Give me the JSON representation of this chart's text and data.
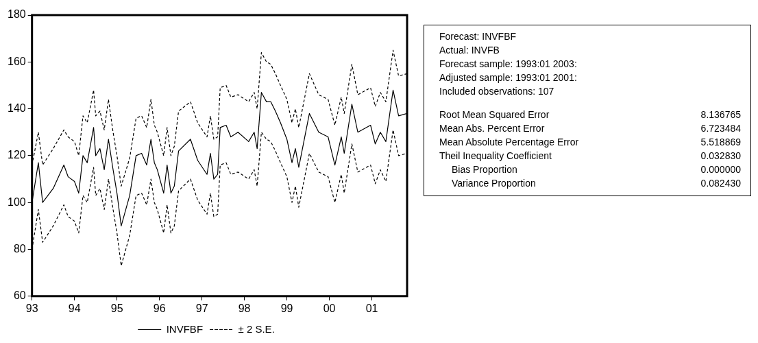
{
  "chart_data": [
    {
      "type": "line",
      "x": [
        1993.0,
        1993.15,
        1993.25,
        1993.5,
        1993.75,
        1993.85,
        1994.0,
        1994.1,
        1994.2,
        1994.3,
        1994.45,
        1994.5,
        1994.6,
        1994.7,
        1994.8,
        1994.9,
        1995.0,
        1995.1,
        1995.3,
        1995.45,
        1995.58,
        1995.7,
        1995.8,
        1995.88,
        1995.95,
        1996.1,
        1996.18,
        1996.27,
        1996.35,
        1996.45,
        1996.73,
        1996.9,
        1997.12,
        1997.2,
        1997.28,
        1997.37,
        1997.43,
        1997.57,
        1997.68,
        1997.85,
        1998.1,
        1998.23,
        1998.3,
        1998.4,
        1998.52,
        1998.62,
        1998.73,
        1998.85,
        1999.0,
        1999.12,
        1999.2,
        1999.28,
        1999.53,
        1999.75,
        1999.97,
        2000.13,
        2000.28,
        2000.35,
        2000.53,
        2000.67,
        2000.97,
        2001.08,
        2001.2,
        2001.33,
        2001.5,
        2001.63,
        2001.83
      ],
      "series": [
        {
          "name": "INVFBF",
          "color": "#000000",
          "line_style": "solid",
          "values": [
            100,
            117,
            100,
            106,
            116,
            111,
            109,
            104,
            120,
            117,
            132,
            120,
            123,
            114,
            127,
            115,
            104,
            90,
            103,
            120,
            121,
            116,
            127,
            117,
            114,
            104,
            116,
            104,
            107,
            122,
            127,
            118,
            112,
            121,
            110,
            112,
            132,
            133,
            128,
            130,
            126,
            130,
            123,
            147,
            143,
            143,
            139,
            134,
            127,
            117,
            123,
            115,
            138,
            130,
            128,
            116,
            128,
            121,
            142,
            130,
            133,
            125,
            130,
            126,
            148,
            137,
            138
          ]
        },
        {
          "name": "± 2 S.E.",
          "color": "#000000",
          "line_style": "dashed",
          "values": [
            116,
            130,
            116,
            123,
            131,
            128,
            126,
            120,
            137,
            134,
            148,
            137,
            139,
            131,
            144,
            131,
            120,
            107,
            119,
            136,
            137,
            132,
            144,
            133,
            130,
            120,
            132,
            120,
            124,
            139,
            143,
            134,
            128,
            137,
            127,
            128,
            149,
            150,
            145,
            146,
            143,
            147,
            140,
            164,
            160,
            159,
            155,
            150,
            144,
            134,
            140,
            132,
            155,
            146,
            144,
            133,
            145,
            138,
            159,
            146,
            149,
            141,
            147,
            143,
            165,
            154,
            155
          ]
        },
        {
          "color": "#000000",
          "line_style": "dashed",
          "values": [
            80,
            97,
            83,
            90,
            99,
            94,
            92,
            87,
            103,
            100,
            115,
            103,
            106,
            97,
            110,
            98,
            87,
            73,
            86,
            103,
            104,
            99,
            110,
            100,
            97,
            87,
            99,
            87,
            90,
            105,
            110,
            101,
            95,
            104,
            94,
            95,
            116,
            117,
            112,
            113,
            110,
            114,
            107,
            130,
            127,
            126,
            122,
            117,
            111,
            100,
            107,
            98,
            121,
            113,
            111,
            100,
            112,
            104,
            125,
            113,
            116,
            108,
            114,
            109,
            131,
            120,
            121
          ]
        }
      ],
      "xlim": [
        1993.0,
        2001.83
      ],
      "xticks": [
        {
          "value": 1993,
          "label": "93"
        },
        {
          "value": 1994,
          "label": "94"
        },
        {
          "value": 1995,
          "label": "95"
        },
        {
          "value": 1996,
          "label": "96"
        },
        {
          "value": 1997,
          "label": "97"
        },
        {
          "value": 1998,
          "label": "98"
        },
        {
          "value": 1999,
          "label": "99"
        },
        {
          "value": 2000,
          "label": "00"
        },
        {
          "value": 2001,
          "label": "01"
        }
      ],
      "ylim": [
        60,
        180
      ],
      "yticks": [
        60,
        80,
        100,
        120,
        140,
        160,
        180
      ],
      "legend": "bottom"
    },
    {
      "type": "other",
      "annotations": [
        "Forecast: INVFBF",
        "Actual: INVFB",
        "Forecast sample: 1993:01 2003:",
        "Adjusted sample: 1993:01 2001:",
        "Included observations: 107"
      ],
      "categories": [
        "Root Mean Squared Error",
        "Mean Abs. Percent Error",
        "Mean Absolute Percentage Error",
        "Theil Inequality Coefficient",
        "Bias Proportion",
        "Variance Proportion"
      ],
      "value_labels": [
        "8.136765",
        "6.723484",
        "5.518869",
        "0.032830",
        "0.000000",
        "0.082430"
      ]
    }
  ]
}
